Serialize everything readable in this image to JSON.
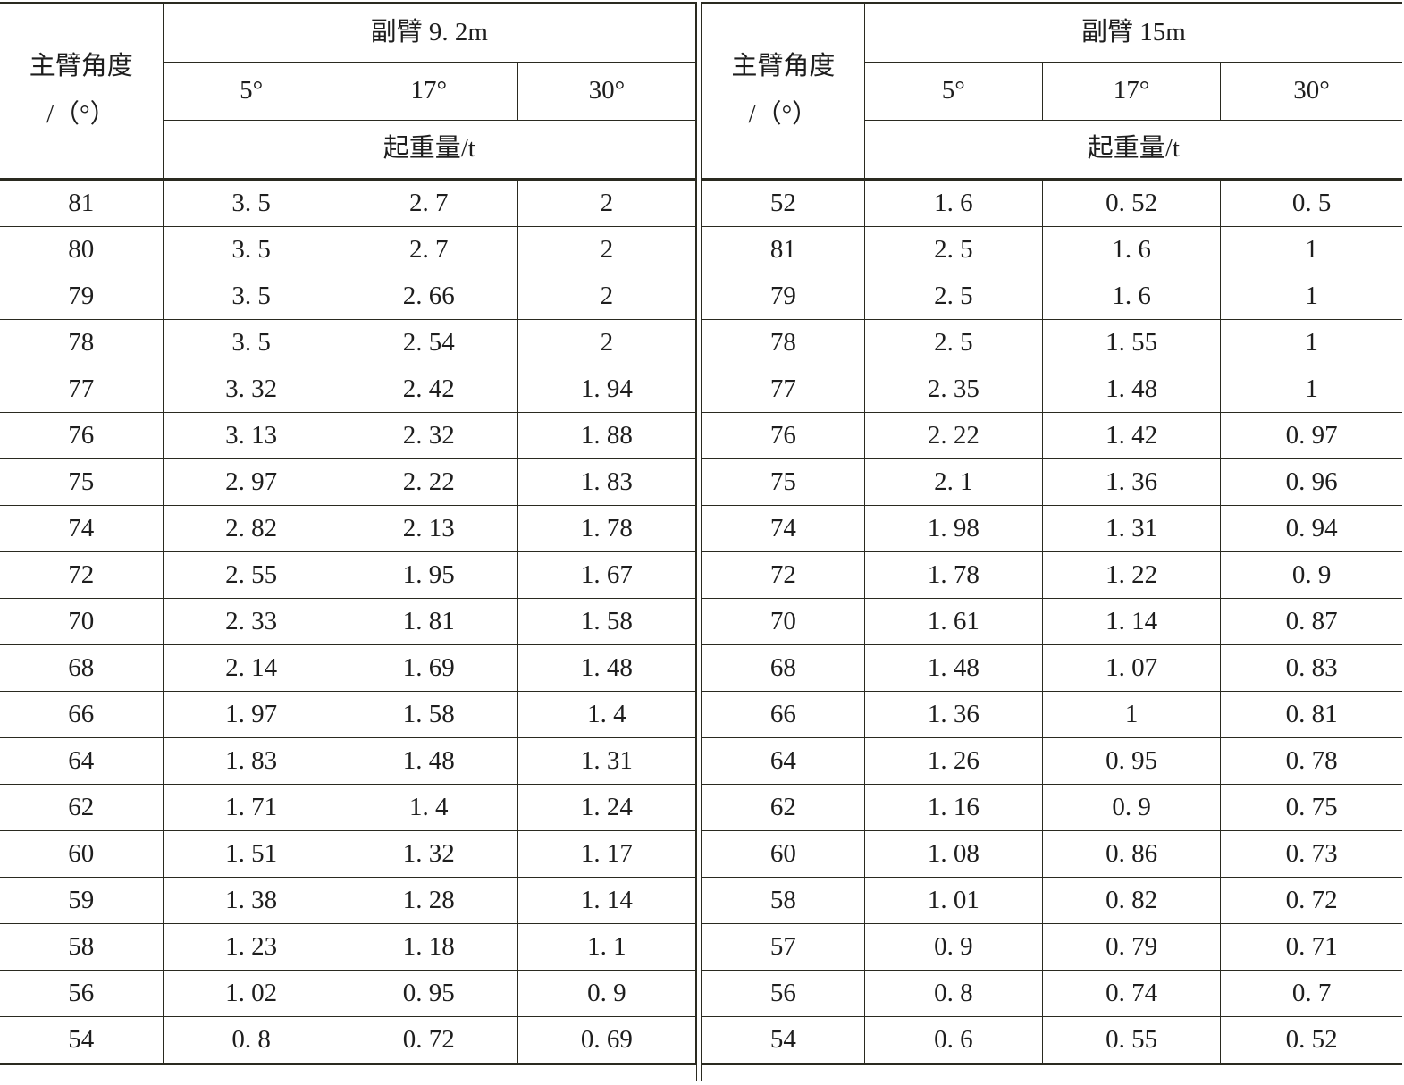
{
  "tables": [
    {
      "angle_header": "主臂角度\n/（°）",
      "group_label": "副臂 9. 2m",
      "offsets": [
        "5°",
        "17°",
        "30°"
      ],
      "unit_label": "起重量/t",
      "rows": [
        [
          "81",
          "3. 5",
          "2. 7",
          "2"
        ],
        [
          "80",
          "3. 5",
          "2. 7",
          "2"
        ],
        [
          "79",
          "3. 5",
          "2. 66",
          "2"
        ],
        [
          "78",
          "3. 5",
          "2. 54",
          "2"
        ],
        [
          "77",
          "3. 32",
          "2. 42",
          "1. 94"
        ],
        [
          "76",
          "3. 13",
          "2. 32",
          "1. 88"
        ],
        [
          "75",
          "2. 97",
          "2. 22",
          "1. 83"
        ],
        [
          "74",
          "2. 82",
          "2. 13",
          "1. 78"
        ],
        [
          "72",
          "2. 55",
          "1. 95",
          "1. 67"
        ],
        [
          "70",
          "2. 33",
          "1. 81",
          "1. 58"
        ],
        [
          "68",
          "2. 14",
          "1. 69",
          "1. 48"
        ],
        [
          "66",
          "1. 97",
          "1. 58",
          "1. 4"
        ],
        [
          "64",
          "1. 83",
          "1. 48",
          "1. 31"
        ],
        [
          "62",
          "1. 71",
          "1. 4",
          "1. 24"
        ],
        [
          "60",
          "1. 51",
          "1. 32",
          "1. 17"
        ],
        [
          "59",
          "1. 38",
          "1. 28",
          "1. 14"
        ],
        [
          "58",
          "1. 23",
          "1. 18",
          "1. 1"
        ],
        [
          "56",
          "1. 02",
          "0. 95",
          "0. 9"
        ],
        [
          "54",
          "0. 8",
          "0. 72",
          "0. 69"
        ]
      ]
    },
    {
      "angle_header": "主臂角度\n/（°）",
      "group_label": "副臂 15m",
      "offsets": [
        "5°",
        "17°",
        "30°"
      ],
      "unit_label": "起重量/t",
      "rows": [
        [
          "52",
          "1. 6",
          "0. 52",
          "0. 5"
        ],
        [
          "81",
          "2. 5",
          "1. 6",
          "1"
        ],
        [
          "79",
          "2. 5",
          "1. 6",
          "1"
        ],
        [
          "78",
          "2. 5",
          "1. 55",
          "1"
        ],
        [
          "77",
          "2. 35",
          "1. 48",
          "1"
        ],
        [
          "76",
          "2. 22",
          "1. 42",
          "0. 97"
        ],
        [
          "75",
          "2. 1",
          "1. 36",
          "0. 96"
        ],
        [
          "74",
          "1. 98",
          "1. 31",
          "0. 94"
        ],
        [
          "72",
          "1. 78",
          "1. 22",
          "0. 9"
        ],
        [
          "70",
          "1. 61",
          "1. 14",
          "0. 87"
        ],
        [
          "68",
          "1. 48",
          "1. 07",
          "0. 83"
        ],
        [
          "66",
          "1. 36",
          "1",
          "0. 81"
        ],
        [
          "64",
          "1. 26",
          "0. 95",
          "0. 78"
        ],
        [
          "62",
          "1. 16",
          "0. 9",
          "0. 75"
        ],
        [
          "60",
          "1. 08",
          "0. 86",
          "0. 73"
        ],
        [
          "58",
          "1. 01",
          "0. 82",
          "0. 72"
        ],
        [
          "57",
          "0. 9",
          "0. 79",
          "0. 71"
        ],
        [
          "56",
          "0. 8",
          "0. 74",
          "0. 7"
        ],
        [
          "54",
          "0. 6",
          "0. 55",
          "0. 52"
        ]
      ]
    }
  ]
}
